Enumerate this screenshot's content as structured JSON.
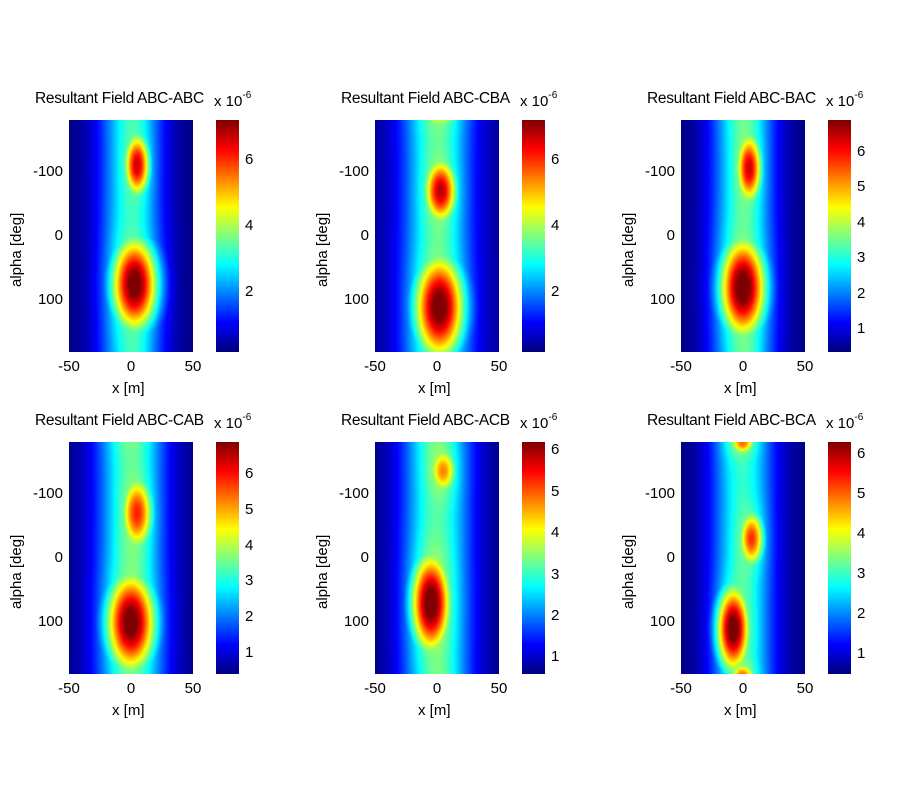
{
  "chart_data": [
    {
      "type": "heatmap",
      "title": "Resultant Field ABC-ABC",
      "xlabel": "x [m]",
      "ylabel": "alpha [deg]",
      "colorbar_scale": "x 10",
      "colorbar_exponent": "-6",
      "xlim": [
        -50,
        50
      ],
      "ylim": [
        -180,
        180
      ],
      "xticks": [
        "-50",
        "0",
        "50"
      ],
      "yticks": [
        "-100",
        "0",
        "100"
      ],
      "clim": [
        0.2,
        7.2
      ],
      "cticks": [
        "2",
        "4",
        "6"
      ],
      "base": 0.2,
      "band": {
        "x": 0,
        "width": 18,
        "amp": 2.8
      },
      "peaks": [
        {
          "x": 5,
          "alpha": -110,
          "value": 6.3,
          "sx": 8,
          "sa": 38
        },
        {
          "x": 3,
          "alpha": 75,
          "value": 7.1,
          "sx": 14,
          "sa": 55
        }
      ]
    },
    {
      "type": "heatmap",
      "title": "Resultant Field ABC-CBA",
      "xlabel": "x [m]",
      "ylabel": "alpha [deg]",
      "colorbar_scale": "x 10",
      "colorbar_exponent": "-6",
      "xlim": [
        -50,
        50
      ],
      "ylim": [
        -180,
        180
      ],
      "xticks": [
        "-50",
        "0",
        "50"
      ],
      "yticks": [
        "-100",
        "0",
        "100"
      ],
      "clim": [
        0.2,
        7.2
      ],
      "cticks": [
        "2",
        "4",
        "6"
      ],
      "base": 0.3,
      "band": {
        "x": 0,
        "width": 20,
        "amp": 2.9
      },
      "peaks": [
        {
          "x": 3,
          "alpha": -70,
          "value": 6.4,
          "sx": 10,
          "sa": 38
        },
        {
          "x": 2,
          "alpha": 110,
          "value": 7.1,
          "sx": 15,
          "sa": 60
        }
      ]
    },
    {
      "type": "heatmap",
      "title": "Resultant Field ABC-BAC",
      "xlabel": "x [m]",
      "ylabel": "alpha [deg]",
      "colorbar_scale": "x 10",
      "colorbar_exponent": "-6",
      "xlim": [
        -50,
        50
      ],
      "ylim": [
        -180,
        180
      ],
      "xticks": [
        "-50",
        "0",
        "50"
      ],
      "yticks": [
        "-100",
        "0",
        "100"
      ],
      "clim": [
        0.35,
        6.9
      ],
      "cticks": [
        "1",
        "2",
        "3",
        "4",
        "5",
        "6"
      ],
      "base": 0.35,
      "band": {
        "x": 0,
        "width": 18,
        "amp": 2.8
      },
      "peaks": [
        {
          "x": 5,
          "alpha": -105,
          "value": 6.0,
          "sx": 8,
          "sa": 42
        },
        {
          "x": 0,
          "alpha": 80,
          "value": 6.9,
          "sx": 14,
          "sa": 58
        }
      ]
    },
    {
      "type": "heatmap",
      "title": "Resultant Field ABC-CAB",
      "xlabel": "x [m]",
      "ylabel": "alpha [deg]",
      "colorbar_scale": "x 10",
      "colorbar_exponent": "-6",
      "xlim": [
        -50,
        50
      ],
      "ylim": [
        -180,
        180
      ],
      "xticks": [
        "-50",
        "0",
        "50"
      ],
      "yticks": [
        "-100",
        "0",
        "100"
      ],
      "clim": [
        0.4,
        6.9
      ],
      "cticks": [
        "1",
        "2",
        "3",
        "4",
        "5",
        "6"
      ],
      "base": 0.4,
      "band": {
        "x": 0,
        "width": 20,
        "amp": 2.8
      },
      "peaks": [
        {
          "x": 5,
          "alpha": -70,
          "value": 5.5,
          "sx": 10,
          "sa": 45
        },
        {
          "x": 0,
          "alpha": 100,
          "value": 6.8,
          "sx": 15,
          "sa": 58
        }
      ]
    },
    {
      "type": "heatmap",
      "title": "Resultant Field ABC-ACB",
      "xlabel": "x [m]",
      "ylabel": "alpha [deg]",
      "colorbar_scale": "x 10",
      "colorbar_exponent": "-6",
      "xlim": [
        -50,
        50
      ],
      "ylim": [
        -180,
        180
      ],
      "xticks": [
        "-50",
        "0",
        "50"
      ],
      "yticks": [
        "-100",
        "0",
        "100"
      ],
      "clim": [
        0.6,
        6.2
      ],
      "cticks": [
        "1",
        "2",
        "3",
        "4",
        "5",
        "6"
      ],
      "base": 0.6,
      "band": {
        "x": 0,
        "width": 20,
        "amp": 2.5
      },
      "peaks": [
        {
          "x": 5,
          "alpha": -135,
          "value": 4.4,
          "sx": 9,
          "sa": 30
        },
        {
          "x": -5,
          "alpha": 70,
          "value": 6.2,
          "sx": 12,
          "sa": 58
        }
      ]
    },
    {
      "type": "heatmap",
      "title": "Resultant Field ABC-BCA",
      "xlabel": "x [m]",
      "ylabel": "alpha [deg]",
      "colorbar_scale": "x 10",
      "colorbar_exponent": "-6",
      "xlim": [
        -50,
        50
      ],
      "ylim": [
        -180,
        180
      ],
      "xticks": [
        "-50",
        "0",
        "50"
      ],
      "yticks": [
        "-100",
        "0",
        "100"
      ],
      "clim": [
        0.5,
        6.3
      ],
      "cticks": [
        "1",
        "2",
        "3",
        "4",
        "5",
        "6"
      ],
      "base": 0.5,
      "band": {
        "x": 0,
        "width": 18,
        "amp": 2.4
      },
      "peaks": [
        {
          "x": 0,
          "alpha": -178,
          "value": 4.4,
          "sx": 8,
          "sa": 14
        },
        {
          "x": 7,
          "alpha": -30,
          "value": 5.0,
          "sx": 8,
          "sa": 35
        },
        {
          "x": -8,
          "alpha": 110,
          "value": 6.3,
          "sx": 10,
          "sa": 50
        }
      ]
    }
  ]
}
